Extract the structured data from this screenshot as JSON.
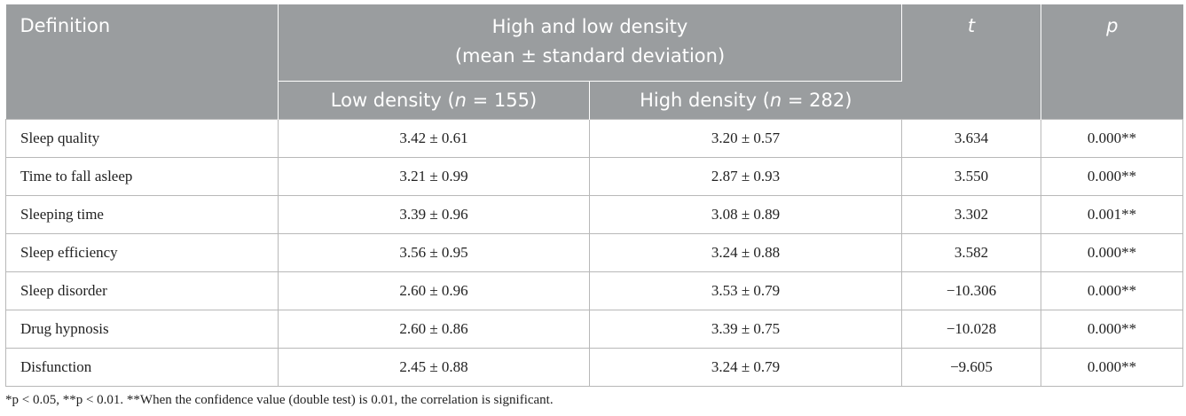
{
  "header": {
    "definition": "Definition",
    "group_line1": "High and low density",
    "group_line2": "(mean ± standard deviation)",
    "low_prefix": "Low density (",
    "low_n": "n",
    "low_suffix": " = 155)",
    "high_prefix": "High density (",
    "high_n": "n",
    "high_suffix": " = 282)",
    "t": "t",
    "p": "p"
  },
  "rows": [
    {
      "definition": "Sleep quality",
      "low": "3.42 ± 0.61",
      "high": "3.20 ± 0.57",
      "t": "3.634",
      "p": "0.000**"
    },
    {
      "definition": "Time to fall asleep",
      "low": "3.21 ± 0.99",
      "high": "2.87 ± 0.93",
      "t": "3.550",
      "p": "0.000**"
    },
    {
      "definition": "Sleeping time",
      "low": "3.39 ± 0.96",
      "high": "3.08 ± 0.89",
      "t": "3.302",
      "p": "0.001**"
    },
    {
      "definition": "Sleep efficiency",
      "low": "3.56 ± 0.95",
      "high": "3.24 ± 0.88",
      "t": "3.582",
      "p": "0.000**"
    },
    {
      "definition": "Sleep disorder",
      "low": "2.60 ± 0.96",
      "high": "3.53 ± 0.79",
      "t": "−10.306",
      "p": "0.000**"
    },
    {
      "definition": "Drug hypnosis",
      "low": "2.60 ± 0.86",
      "high": "3.39 ± 0.75",
      "t": "−10.028",
      "p": "0.000**"
    },
    {
      "definition": "Disfunction",
      "low": "2.45 ± 0.88",
      "high": "3.24 ± 0.79",
      "t": "−9.605",
      "p": "0.000**"
    }
  ],
  "footnote": "*p < 0.05, **p < 0.01. **When the confidence value (double test) is 0.01, the correlation is significant.",
  "colors": {
    "header_bg": "#9a9d9f",
    "header_text": "#ffffff",
    "grid": "#b8b8b8"
  }
}
